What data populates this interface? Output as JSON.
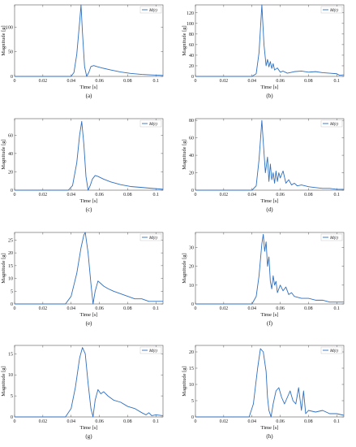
{
  "figure": {
    "colors": {
      "series": "#2f6fbf",
      "axis": "#555555",
      "text": "#111111"
    }
  },
  "chart_data": [
    {
      "type": "line",
      "panel_label": "(a)",
      "xlabel": "Time [s]",
      "ylabel": "Magnitude [g]",
      "xlim": [
        0,
        0.105
      ],
      "ylim": [
        0,
        145
      ],
      "xticks": [
        0,
        0.02,
        0.04,
        0.06,
        0.08,
        0.1
      ],
      "xtick_labels": [
        "0",
        "0.02",
        "0.04",
        "0.06",
        "0.08",
        "0.1"
      ],
      "yticks": [
        0,
        50,
        100
      ],
      "ytick_labels": [
        "0",
        "50",
        "100"
      ],
      "grid": false,
      "legend_position": "top-right",
      "series": [
        {
          "name": "M(t)",
          "x": [
            0,
            0.04,
            0.042,
            0.044,
            0.046,
            0.047,
            0.048,
            0.0495,
            0.051,
            0.0525,
            0.054,
            0.056,
            0.058,
            0.062,
            0.068,
            0.075,
            0.082,
            0.09,
            0.097,
            0.105
          ],
          "y": [
            0,
            0,
            8,
            45,
            110,
            145,
            90,
            20,
            0,
            8,
            20,
            22,
            20,
            17,
            13,
            9,
            6,
            4,
            3,
            2
          ]
        }
      ]
    },
    {
      "type": "line",
      "panel_label": "(b)",
      "xlabel": "Time [s]",
      "ylabel": "Magnitude [g]",
      "xlim": [
        0,
        0.105
      ],
      "ylim": [
        0,
        135
      ],
      "xticks": [
        0,
        0.02,
        0.04,
        0.06,
        0.08,
        0.1
      ],
      "xtick_labels": [
        "0",
        "0.02",
        "0.04",
        "0.06",
        "0.08",
        "0.1"
      ],
      "yticks": [
        0,
        20,
        40,
        60,
        80,
        100,
        120
      ],
      "ytick_labels": [
        "0",
        "20",
        "40",
        "60",
        "80",
        "100",
        "120"
      ],
      "grid": false,
      "legend_position": "top-right",
      "series": [
        {
          "name": "M(t)",
          "x": [
            0,
            0.04,
            0.043,
            0.045,
            0.047,
            0.0485,
            0.05,
            0.051,
            0.052,
            0.053,
            0.054,
            0.055,
            0.056,
            0.058,
            0.06,
            0.062,
            0.065,
            0.07,
            0.075,
            0.08,
            0.085,
            0.09,
            0.095,
            0.1,
            0.102,
            0.105
          ],
          "y": [
            0,
            0,
            5,
            45,
            135,
            60,
            20,
            32,
            18,
            28,
            15,
            24,
            12,
            16,
            8,
            10,
            6,
            9,
            10,
            8,
            9,
            7,
            6,
            5,
            2,
            3
          ]
        }
      ]
    },
    {
      "type": "line",
      "panel_label": "(c)",
      "xlabel": "Time [s]",
      "ylabel": "Magnitude [g]",
      "xlim": [
        0,
        0.105
      ],
      "ylim": [
        0,
        78
      ],
      "xticks": [
        0,
        0.02,
        0.04,
        0.06,
        0.08,
        0.1
      ],
      "xtick_labels": [
        "0",
        "0.02",
        "0.04",
        "0.06",
        "0.08",
        "0.1"
      ],
      "yticks": [
        0,
        20,
        40,
        60
      ],
      "ytick_labels": [
        "0",
        "20",
        "40",
        "60"
      ],
      "grid": false,
      "legend_position": "top-right",
      "series": [
        {
          "name": "M(t)",
          "x": [
            0,
            0.038,
            0.041,
            0.044,
            0.046,
            0.0475,
            0.049,
            0.0505,
            0.052,
            0.0535,
            0.055,
            0.057,
            0.059,
            0.063,
            0.068,
            0.075,
            0.082,
            0.09,
            0.097,
            0.105
          ],
          "y": [
            0,
            0,
            5,
            30,
            60,
            75,
            50,
            15,
            0,
            5,
            12,
            16,
            15,
            12,
            9,
            6,
            4,
            3,
            2,
            1
          ]
        }
      ]
    },
    {
      "type": "line",
      "panel_label": "(d)",
      "xlabel": "Time [s]",
      "ylabel": "Magnitude [g]",
      "xlim": [
        0,
        0.105
      ],
      "ylim": [
        0,
        82
      ],
      "xticks": [
        0,
        0.02,
        0.04,
        0.06,
        0.08,
        0.1
      ],
      "xtick_labels": [
        "0",
        "0.02",
        "0.04",
        "0.06",
        "0.08",
        "0.1"
      ],
      "yticks": [
        0,
        20,
        40,
        60,
        80
      ],
      "ytick_labels": [
        "0",
        "20",
        "40",
        "60",
        "80"
      ],
      "grid": false,
      "legend_position": "top-right",
      "series": [
        {
          "name": "M(t)",
          "x": [
            0,
            0.04,
            0.043,
            0.045,
            0.047,
            0.048,
            0.0495,
            0.051,
            0.052,
            0.053,
            0.054,
            0.055,
            0.056,
            0.057,
            0.058,
            0.059,
            0.06,
            0.062,
            0.064,
            0.066,
            0.068,
            0.07,
            0.072,
            0.075,
            0.08,
            0.085,
            0.09,
            0.095,
            0.1,
            0.105
          ],
          "y": [
            0,
            0,
            5,
            35,
            80,
            55,
            20,
            38,
            10,
            30,
            12,
            20,
            8,
            22,
            10,
            20,
            14,
            22,
            8,
            12,
            6,
            8,
            5,
            6,
            4,
            3,
            2,
            2,
            1,
            1
          ]
        }
      ]
    },
    {
      "type": "line",
      "panel_label": "(e)",
      "xlabel": "Time [s]",
      "ylabel": "Magnitude [g]",
      "xlim": [
        0,
        0.105
      ],
      "ylim": [
        0,
        28
      ],
      "xticks": [
        0,
        0.02,
        0.04,
        0.06,
        0.08,
        0.1
      ],
      "xtick_labels": [
        "0",
        "0.02",
        "0.04",
        "0.06",
        "0.08",
        "0.1"
      ],
      "yticks": [
        0,
        5,
        10,
        15,
        20,
        25
      ],
      "ytick_labels": [
        "0",
        "5",
        "10",
        "15",
        "20",
        "25"
      ],
      "grid": false,
      "legend_position": "top-right",
      "series": [
        {
          "name": "M(t)",
          "x": [
            0,
            0.036,
            0.04,
            0.044,
            0.047,
            0.049,
            0.05,
            0.052,
            0.054,
            0.0555,
            0.057,
            0.059,
            0.061,
            0.063,
            0.066,
            0.07,
            0.075,
            0.08,
            0.085,
            0.09,
            0.095,
            0.1,
            0.105
          ],
          "y": [
            0,
            0,
            3,
            12,
            22,
            27,
            28,
            20,
            8,
            0,
            5,
            9,
            8,
            7,
            6,
            5,
            4,
            3,
            2,
            2,
            1,
            1,
            1
          ]
        }
      ]
    },
    {
      "type": "line",
      "panel_label": "(f)",
      "xlabel": "Time [s]",
      "ylabel": "Magnitude [g]",
      "xlim": [
        0,
        0.105
      ],
      "ylim": [
        0,
        38
      ],
      "xticks": [
        0,
        0.02,
        0.04,
        0.06,
        0.08,
        0.1
      ],
      "xtick_labels": [
        "0",
        "0.02",
        "0.04",
        "0.06",
        "0.08",
        "0.1"
      ],
      "yticks": [
        0,
        10,
        20,
        30
      ],
      "ytick_labels": [
        "0",
        "10",
        "20",
        "30"
      ],
      "grid": false,
      "legend_position": "top-right",
      "series": [
        {
          "name": "M(t)",
          "x": [
            0,
            0.04,
            0.043,
            0.045,
            0.047,
            0.048,
            0.049,
            0.05,
            0.051,
            0.052,
            0.053,
            0.054,
            0.055,
            0.056,
            0.057,
            0.058,
            0.06,
            0.062,
            0.064,
            0.066,
            0.068,
            0.07,
            0.075,
            0.08,
            0.085,
            0.09,
            0.095,
            0.1,
            0.105
          ],
          "y": [
            0,
            0,
            4,
            15,
            32,
            37,
            28,
            33,
            20,
            25,
            12,
            8,
            15,
            10,
            12,
            6,
            10,
            7,
            9,
            5,
            6,
            4,
            3,
            3,
            2,
            2,
            1,
            1,
            1
          ]
        }
      ]
    },
    {
      "type": "line",
      "panel_label": "(g)",
      "xlabel": "Time [s]",
      "ylabel": "Magnitude [g]",
      "xlim": [
        0,
        0.105
      ],
      "ylim": [
        0,
        17
      ],
      "xticks": [
        0,
        0.02,
        0.04,
        0.06,
        0.08,
        0.1
      ],
      "xtick_labels": [
        "0",
        "0.02",
        "0.04",
        "0.06",
        "0.08",
        "0.1"
      ],
      "yticks": [
        0,
        5,
        10,
        15
      ],
      "ytick_labels": [
        "0",
        "5",
        "10",
        "15"
      ],
      "grid": false,
      "legend_position": "top-right",
      "series": [
        {
          "name": "M(t)",
          "x": [
            0,
            0.036,
            0.04,
            0.043,
            0.046,
            0.048,
            0.05,
            0.052,
            0.054,
            0.0555,
            0.057,
            0.059,
            0.061,
            0.063,
            0.066,
            0.07,
            0.075,
            0.08,
            0.085,
            0.09,
            0.093,
            0.095,
            0.097,
            0.1,
            0.105
          ],
          "y": [
            0,
            0,
            2,
            7,
            14,
            16.5,
            15,
            8,
            2,
            0,
            4,
            6.5,
            5.5,
            6,
            5,
            4,
            3.5,
            2.5,
            2,
            1,
            0.5,
            1,
            0.3,
            0.5,
            0.3
          ]
        }
      ]
    },
    {
      "type": "line",
      "panel_label": "(h)",
      "xlabel": "Time [s]",
      "ylabel": "Magnitude [g]",
      "xlim": [
        0,
        0.105
      ],
      "ylim": [
        0,
        22
      ],
      "xticks": [
        0,
        0.02,
        0.04,
        0.06,
        0.08,
        0.1
      ],
      "xtick_labels": [
        "0",
        "0.02",
        "0.04",
        "0.06",
        "0.08",
        "0.1"
      ],
      "yticks": [
        0,
        5,
        10,
        15,
        20
      ],
      "ytick_labels": [
        "0",
        "5",
        "10",
        "15",
        "20"
      ],
      "grid": false,
      "legend_position": "top-right",
      "series": [
        {
          "name": "M(t)",
          "x": [
            0,
            0.038,
            0.041,
            0.044,
            0.046,
            0.048,
            0.05,
            0.051,
            0.052,
            0.0535,
            0.055,
            0.057,
            0.059,
            0.061,
            0.063,
            0.065,
            0.067,
            0.069,
            0.071,
            0.073,
            0.075,
            0.0765,
            0.078,
            0.08,
            0.085,
            0.09,
            0.095,
            0.1,
            0.105
          ],
          "y": [
            0,
            0,
            4,
            15,
            21,
            20,
            14,
            6,
            2,
            0,
            4,
            8,
            9,
            6,
            4,
            6,
            8,
            5,
            4,
            9,
            2,
            8,
            1,
            2,
            1.5,
            2,
            1,
            1,
            0.5
          ]
        }
      ]
    }
  ]
}
